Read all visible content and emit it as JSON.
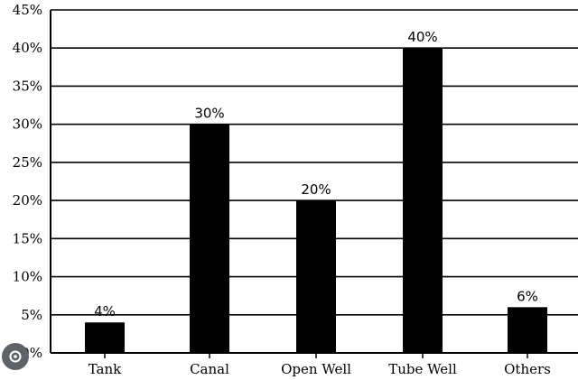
{
  "chart_data": {
    "type": "bar",
    "categories": [
      "Tank",
      "Canal",
      "Open Well",
      "Tube Well",
      "Others"
    ],
    "values": [
      4,
      30,
      20,
      40,
      6
    ],
    "value_labels": [
      "4%",
      "30%",
      "20%",
      "40%",
      "6%"
    ],
    "y_ticks": [
      "0%",
      "5%",
      "10%",
      "15%",
      "20%",
      "25%",
      "30%",
      "35%",
      "40%",
      "45%"
    ],
    "ylim": [
      0,
      45
    ],
    "grid": true,
    "bar_color": "#000000",
    "title": "",
    "xlabel": "",
    "ylabel": ""
  },
  "overlay": {
    "icon": "lens-search-icon",
    "icon_color": "#5f6368"
  }
}
